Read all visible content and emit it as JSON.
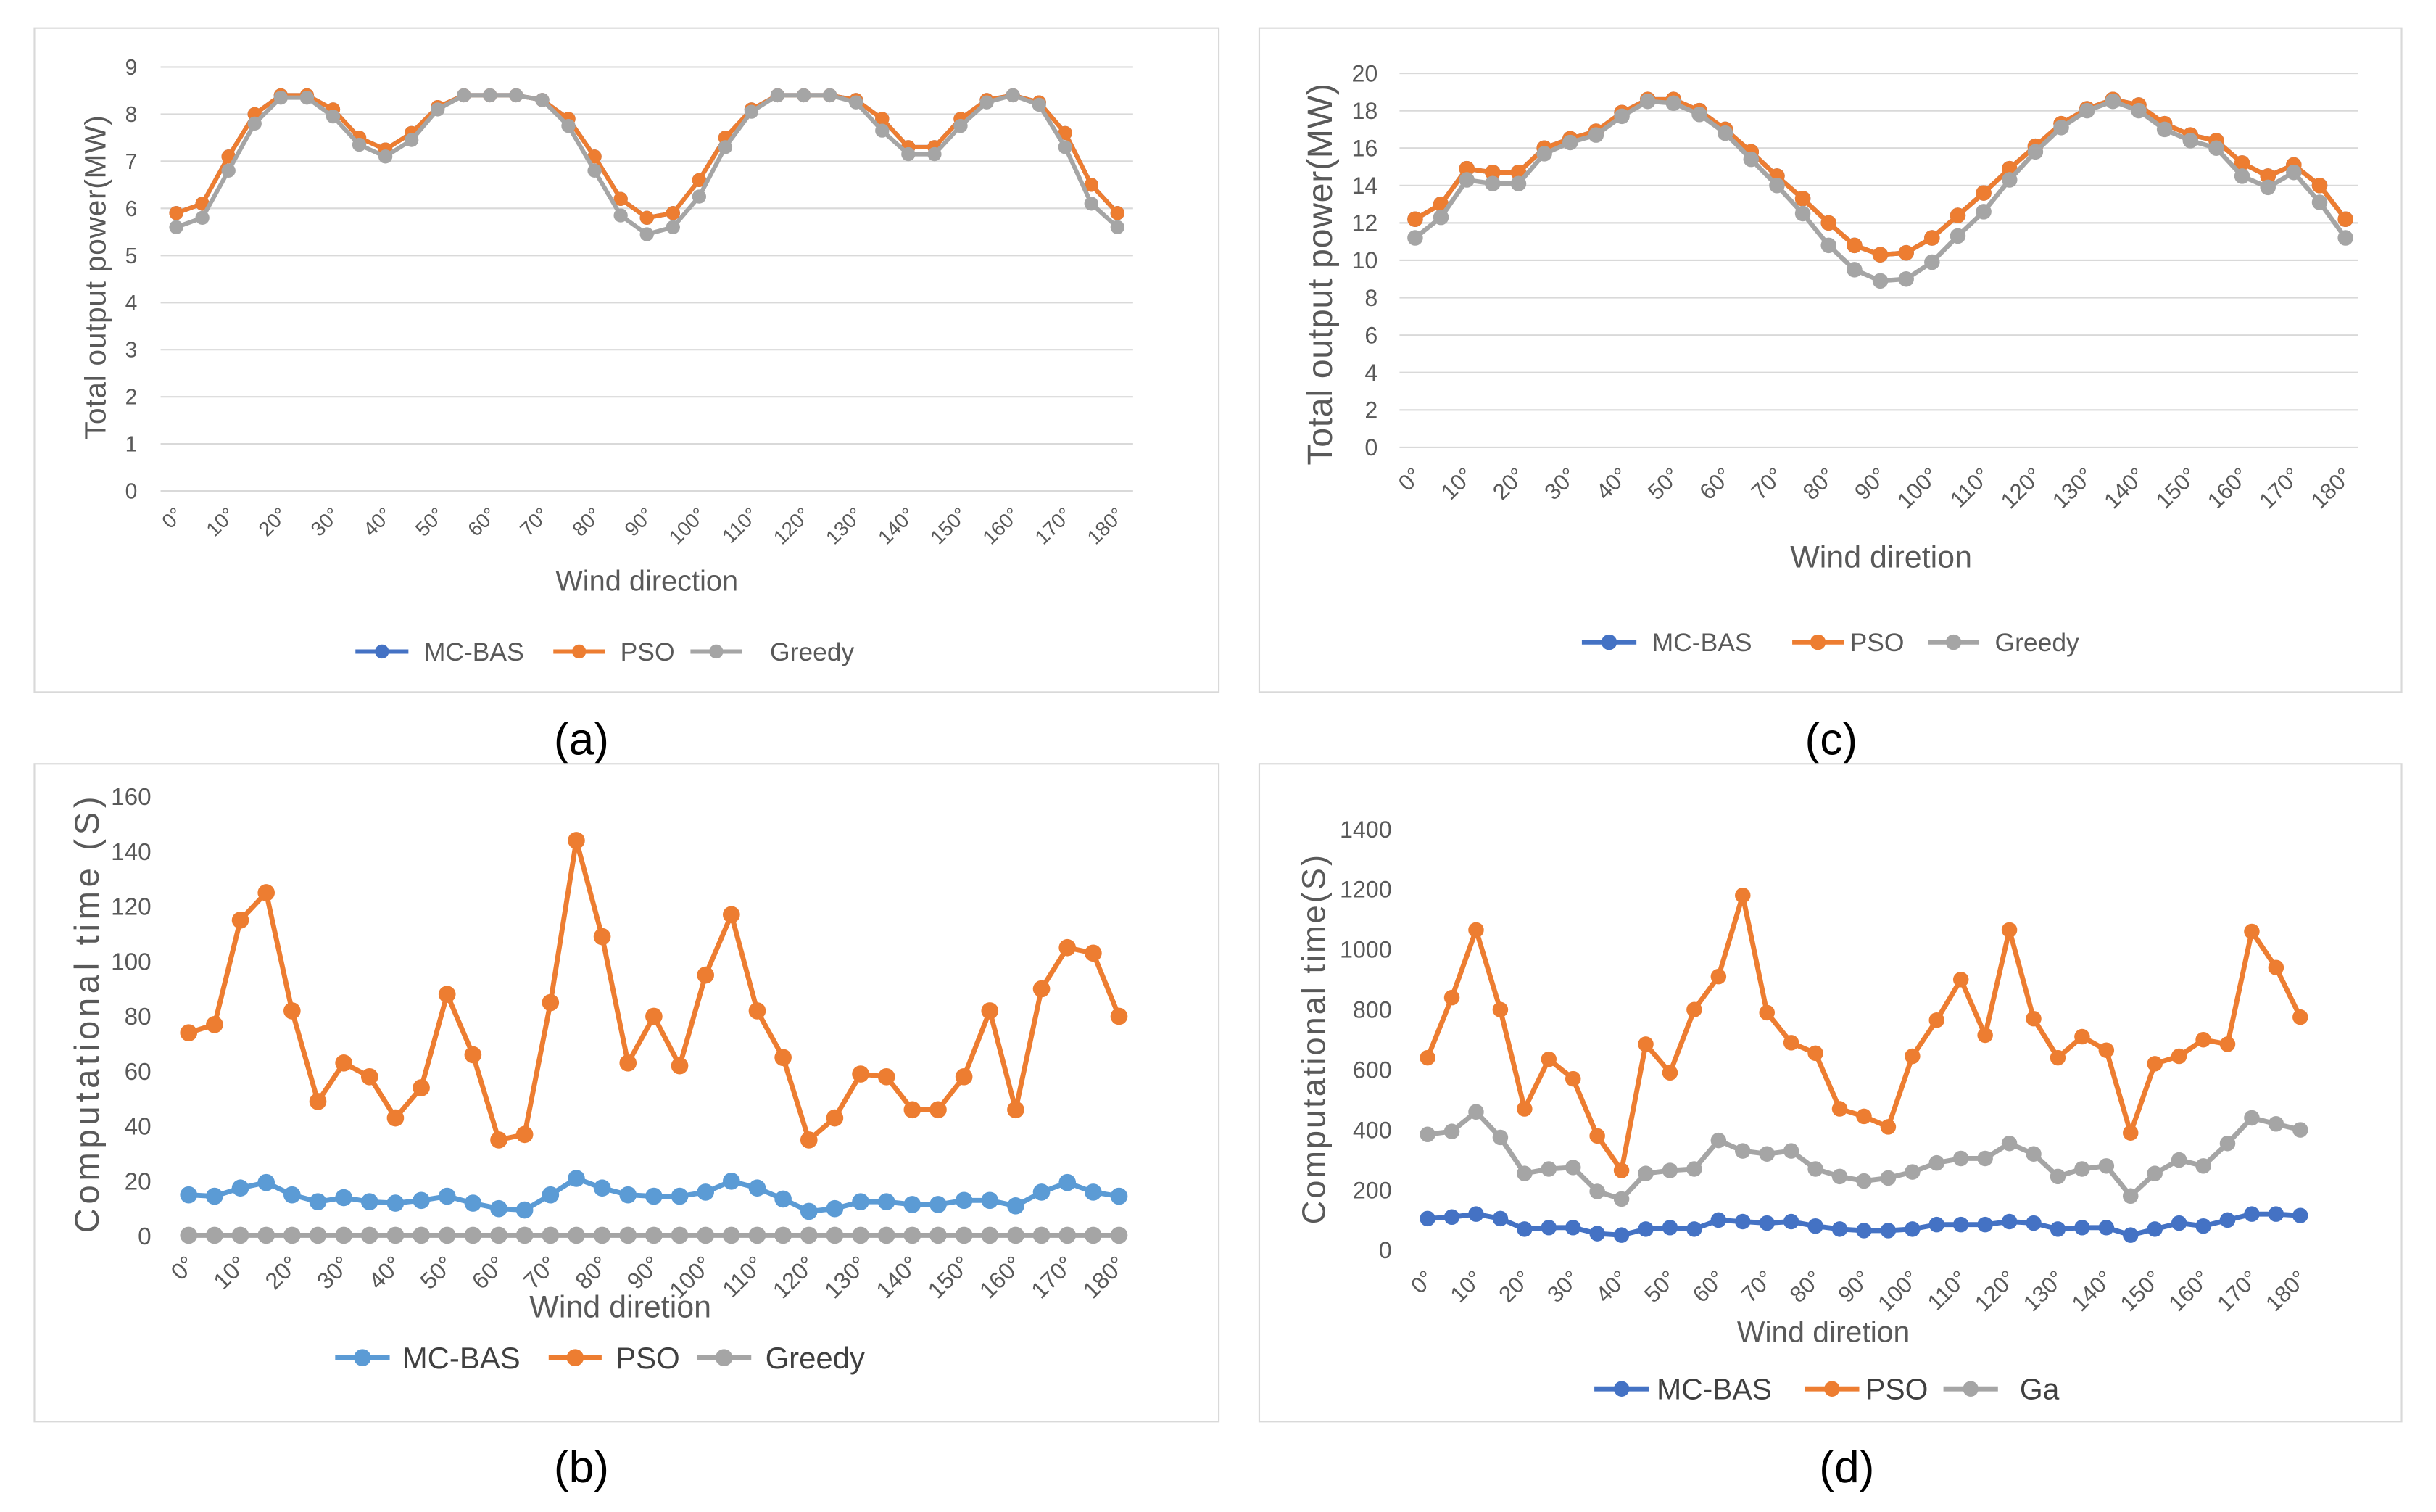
{
  "chart_data": [
    {
      "caption": "(a)",
      "type": "line",
      "title": "",
      "xlabel": "Wind direction",
      "ylabel": "Total output power(MW)",
      "x": [
        0,
        5,
        10,
        15,
        20,
        25,
        30,
        35,
        40,
        45,
        50,
        55,
        60,
        65,
        70,
        75,
        80,
        85,
        90,
        95,
        100,
        105,
        110,
        115,
        120,
        125,
        130,
        135,
        140,
        145,
        150,
        155,
        160,
        165,
        170,
        175,
        180
      ],
      "x_tick_labels": [
        "0°",
        "10°",
        "20°",
        "30°",
        "40°",
        "50°",
        "60°",
        "70°",
        "80°",
        "90°",
        "100°",
        "110°",
        "120°",
        "130°",
        "140°",
        "150°",
        "160°",
        "170°",
        "180°"
      ],
      "yticks": [
        0,
        1,
        2,
        3,
        4,
        5,
        6,
        7,
        8,
        9
      ],
      "ylim": [
        0,
        9
      ],
      "grid": true,
      "legend_position": "bottom",
      "series": [
        {
          "name": "MC-BAS",
          "color": "#4472C4",
          "values": [
            5.9,
            6.1,
            7.1,
            8.0,
            8.4,
            8.4,
            8.1,
            7.5,
            7.25,
            7.6,
            8.15,
            8.4,
            8.4,
            8.4,
            8.3,
            7.9,
            7.1,
            6.2,
            5.8,
            5.9,
            6.6,
            7.5,
            8.1,
            8.4,
            8.4,
            8.4,
            8.3,
            7.9,
            7.3,
            7.3,
            7.9,
            8.3,
            8.4,
            8.25,
            7.6,
            6.5,
            5.9
          ]
        },
        {
          "name": "PSO",
          "color": "#ED7D31",
          "values": [
            5.9,
            6.1,
            7.1,
            8.0,
            8.4,
            8.4,
            8.1,
            7.5,
            7.25,
            7.6,
            8.15,
            8.4,
            8.4,
            8.4,
            8.3,
            7.9,
            7.1,
            6.2,
            5.8,
            5.9,
            6.6,
            7.5,
            8.1,
            8.4,
            8.4,
            8.4,
            8.3,
            7.9,
            7.3,
            7.3,
            7.9,
            8.3,
            8.4,
            8.25,
            7.6,
            6.5,
            5.9
          ]
        },
        {
          "name": "Greedy",
          "color": "#A5A5A5",
          "values": [
            5.6,
            5.8,
            6.8,
            7.8,
            8.35,
            8.35,
            7.95,
            7.35,
            7.1,
            7.45,
            8.1,
            8.4,
            8.4,
            8.4,
            8.3,
            7.75,
            6.8,
            5.85,
            5.45,
            5.6,
            6.25,
            7.3,
            8.05,
            8.4,
            8.4,
            8.4,
            8.25,
            7.65,
            7.15,
            7.15,
            7.75,
            8.25,
            8.4,
            8.2,
            7.3,
            6.1,
            5.6
          ]
        }
      ]
    },
    {
      "caption": "(b)",
      "type": "line",
      "title": "",
      "xlabel": "Wind diretion",
      "ylabel": "Computational time (S)",
      "x": [
        0,
        5,
        10,
        15,
        20,
        25,
        30,
        35,
        40,
        45,
        50,
        55,
        60,
        65,
        70,
        75,
        80,
        85,
        90,
        95,
        100,
        105,
        110,
        115,
        120,
        125,
        130,
        135,
        140,
        145,
        150,
        155,
        160,
        165,
        170,
        175,
        180
      ],
      "x_tick_labels": [
        "0°",
        "10°",
        "20°",
        "30°",
        "40°",
        "50°",
        "60°",
        "70°",
        "80°",
        "90°",
        "100°",
        "110°",
        "120°",
        "130°",
        "140°",
        "150°",
        "160°",
        "170°",
        "180°"
      ],
      "yticks": [
        0,
        20,
        40,
        60,
        80,
        100,
        120,
        140,
        160
      ],
      "ylim": [
        0,
        160
      ],
      "grid": false,
      "legend_position": "bottom",
      "series": [
        {
          "name": "MC-BAS",
          "color": "#5B9BD5",
          "values": [
            15,
            14.5,
            17.5,
            19.5,
            15,
            12.5,
            14,
            12.5,
            12,
            13,
            14.5,
            12,
            10,
            9.5,
            15,
            21,
            17.5,
            15,
            14.5,
            14.5,
            16,
            20,
            17.5,
            13.5,
            9,
            10,
            12.5,
            12.5,
            11.5,
            11.5,
            13,
            13,
            11,
            16,
            19.5,
            16,
            14.5
          ]
        },
        {
          "name": "PSO",
          "color": "#ED7D31",
          "values": [
            74,
            77,
            115,
            125,
            82,
            49,
            63,
            58,
            43,
            54,
            88,
            66,
            35,
            37,
            85,
            144,
            109,
            63,
            80,
            62,
            95,
            117,
            82,
            65,
            35,
            43,
            59,
            58,
            46,
            46,
            58,
            82,
            46,
            90,
            105,
            103,
            80
          ]
        },
        {
          "name": "Greedy",
          "color": "#A5A5A5",
          "values": [
            0.3,
            0.3,
            0.3,
            0.3,
            0.3,
            0.3,
            0.3,
            0.3,
            0.3,
            0.3,
            0.3,
            0.3,
            0.3,
            0.3,
            0.3,
            0.3,
            0.3,
            0.3,
            0.3,
            0.3,
            0.3,
            0.3,
            0.3,
            0.3,
            0.3,
            0.3,
            0.3,
            0.3,
            0.3,
            0.3,
            0.3,
            0.3,
            0.3,
            0.3,
            0.3,
            0.3,
            0.3
          ]
        }
      ]
    },
    {
      "caption": "(c)",
      "type": "line",
      "title": "",
      "xlabel": "Wind diretion",
      "ylabel": "Total output power(MW)",
      "x": [
        0,
        5,
        10,
        15,
        20,
        25,
        30,
        35,
        40,
        45,
        50,
        55,
        60,
        65,
        70,
        75,
        80,
        85,
        90,
        95,
        100,
        105,
        110,
        115,
        120,
        125,
        130,
        135,
        140,
        145,
        150,
        155,
        160,
        165,
        170,
        175,
        180
      ],
      "x_tick_labels": [
        "0°",
        "10°",
        "20°",
        "30°",
        "40°",
        "50°",
        "60°",
        "70°",
        "80°",
        "90°",
        "100°",
        "110°",
        "120°",
        "130°",
        "140°",
        "150°",
        "160°",
        "170°",
        "180°"
      ],
      "yticks": [
        0,
        2,
        4,
        6,
        8,
        10,
        12,
        14,
        16,
        18,
        20
      ],
      "ylim": [
        0,
        20
      ],
      "grid": true,
      "legend_position": "bottom",
      "series": [
        {
          "name": "MC-BAS",
          "color": "#4472C4",
          "values": [
            12.2,
            13.0,
            14.9,
            14.7,
            14.7,
            16.0,
            16.5,
            16.9,
            17.9,
            18.6,
            18.6,
            18.0,
            17.0,
            15.8,
            14.5,
            13.3,
            12.0,
            10.8,
            10.3,
            10.4,
            11.2,
            12.4,
            13.6,
            14.9,
            16.1,
            17.3,
            18.1,
            18.6,
            18.3,
            17.3,
            16.7,
            16.4,
            15.2,
            14.5,
            15.1,
            14.0,
            12.2
          ]
        },
        {
          "name": "PSO",
          "color": "#ED7D31",
          "values": [
            12.2,
            13.0,
            14.9,
            14.7,
            14.7,
            16.0,
            16.5,
            16.9,
            17.9,
            18.6,
            18.6,
            18.0,
            17.0,
            15.8,
            14.5,
            13.3,
            12.0,
            10.8,
            10.3,
            10.4,
            11.2,
            12.4,
            13.6,
            14.9,
            16.1,
            17.3,
            18.1,
            18.6,
            18.3,
            17.3,
            16.7,
            16.4,
            15.2,
            14.5,
            15.1,
            14.0,
            12.2
          ]
        },
        {
          "name": "Greedy",
          "color": "#A5A5A5",
          "values": [
            11.2,
            12.3,
            14.3,
            14.1,
            14.1,
            15.7,
            16.3,
            16.7,
            17.7,
            18.5,
            18.4,
            17.8,
            16.8,
            15.4,
            14.0,
            12.5,
            10.8,
            9.5,
            8.9,
            9.0,
            9.9,
            11.3,
            12.6,
            14.3,
            15.8,
            17.1,
            18.0,
            18.5,
            18.0,
            17.0,
            16.4,
            16.0,
            14.5,
            13.9,
            14.7,
            13.1,
            11.2
          ]
        }
      ]
    },
    {
      "caption": "(d)",
      "type": "line",
      "title": "",
      "xlabel": "Wind diretion",
      "ylabel": "Computational time(S)",
      "x": [
        0,
        5,
        10,
        15,
        20,
        25,
        30,
        35,
        40,
        45,
        50,
        55,
        60,
        65,
        70,
        75,
        80,
        85,
        90,
        95,
        100,
        105,
        110,
        115,
        120,
        125,
        130,
        135,
        140,
        145,
        150,
        155,
        160,
        165,
        170,
        175,
        180
      ],
      "x_tick_labels": [
        "0°",
        "10°",
        "20°",
        "30°",
        "40°",
        "50°",
        "60°",
        "70°",
        "80°",
        "90°",
        "100°",
        "110°",
        "120°",
        "130°",
        "140°",
        "150°",
        "160°",
        "170°",
        "180°"
      ],
      "yticks": [
        0,
        200,
        400,
        600,
        800,
        1000,
        1200,
        1400
      ],
      "ylim": [
        0,
        1400
      ],
      "grid": false,
      "legend_position": "bottom",
      "series": [
        {
          "name": "MC-BAS",
          "color": "#4472C4",
          "values": [
            105,
            110,
            120,
            105,
            70,
            75,
            75,
            55,
            50,
            70,
            75,
            70,
            100,
            95,
            90,
            95,
            80,
            70,
            65,
            65,
            70,
            85,
            85,
            85,
            95,
            90,
            70,
            75,
            75,
            50,
            70,
            90,
            80,
            100,
            120,
            120,
            115
          ]
        },
        {
          "name": "PSO",
          "color": "#ED7D31",
          "values": [
            640,
            840,
            1065,
            800,
            470,
            635,
            570,
            380,
            265,
            685,
            590,
            800,
            910,
            1180,
            790,
            690,
            655,
            470,
            445,
            410,
            645,
            765,
            900,
            715,
            1065,
            770,
            640,
            710,
            665,
            390,
            620,
            645,
            700,
            685,
            1060,
            940,
            775
          ]
        },
        {
          "name": "Ga",
          "color": "#A5A5A5",
          "values": [
            385,
            395,
            460,
            375,
            255,
            270,
            275,
            195,
            170,
            255,
            265,
            270,
            365,
            330,
            320,
            330,
            270,
            245,
            230,
            240,
            260,
            290,
            305,
            305,
            355,
            320,
            245,
            270,
            280,
            180,
            255,
            300,
            280,
            355,
            440,
            420,
            400
          ]
        }
      ]
    }
  ]
}
